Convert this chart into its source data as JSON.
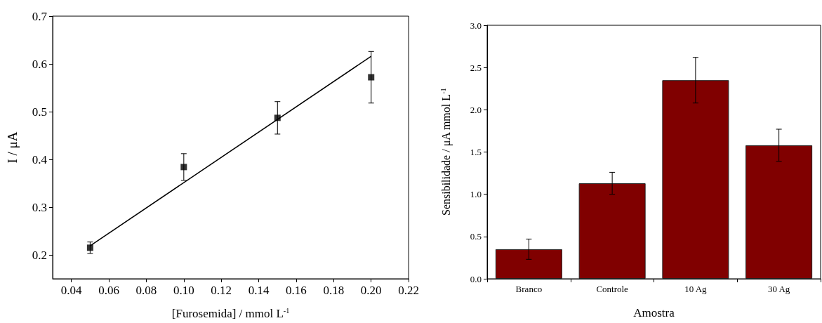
{
  "chart_data": [
    {
      "type": "scatter",
      "xlabel": "[Furosemida] / mmol L$^{-1}$",
      "ylabel": "I / μA",
      "marker": "square",
      "xlim": [
        0.03,
        0.22
      ],
      "xticks": [
        {
          "value": 0.04,
          "label": "0.04"
        },
        {
          "value": 0.06,
          "label": "0.06"
        },
        {
          "value": 0.08,
          "label": "0.08"
        },
        {
          "value": 0.1,
          "label": "0.10"
        },
        {
          "value": 0.12,
          "label": "0.12"
        },
        {
          "value": 0.14,
          "label": "0.14"
        },
        {
          "value": 0.16,
          "label": "0.16"
        },
        {
          "value": 0.18,
          "label": "0.18"
        },
        {
          "value": 0.2,
          "label": "0.20"
        },
        {
          "value": 0.22,
          "label": "0.22"
        }
      ],
      "ylim": [
        0.15,
        0.7
      ],
      "yticks": [
        0.2,
        0.3,
        0.4,
        0.5,
        0.6,
        0.7
      ],
      "series": [
        {
          "type": "scatter",
          "color": "#000000",
          "x": [
            0.05,
            0.1,
            0.15,
            0.2
          ],
          "values": [
            0.215,
            0.384,
            0.487,
            0.572
          ],
          "errors": [
            0.012,
            0.028,
            0.034,
            0.054
          ]
        },
        {
          "type": "line",
          "color": "#000000",
          "x": [
            0.05,
            0.2
          ],
          "values": [
            0.219,
            0.616
          ],
          "marker": "none"
        }
      ]
    },
    {
      "type": "bar",
      "xlabel": "Amostra",
      "ylabel": "Sensibilidade / μA mmol L$^{-1}$",
      "categories": [
        "Branco",
        "Controle",
        "10 Ag",
        "30 Ag"
      ],
      "ylim": [
        0,
        3
      ],
      "yticks": [
        {
          "value": 0,
          "label": "0.0"
        },
        {
          "value": 0.5,
          "label": "0.5"
        },
        {
          "value": 1,
          "label": "1.0"
        },
        {
          "value": 1.5,
          "label": "1.5"
        },
        {
          "value": 2,
          "label": "2.0"
        },
        {
          "value": 2.5,
          "label": "2.5"
        },
        {
          "value": 3,
          "label": "3.0"
        }
      ],
      "series": [
        {
          "color": "#800000",
          "values": [
            0.35,
            1.13,
            2.35,
            1.58
          ],
          "errors": [
            0.12,
            0.13,
            0.27,
            0.19
          ]
        }
      ]
    }
  ]
}
